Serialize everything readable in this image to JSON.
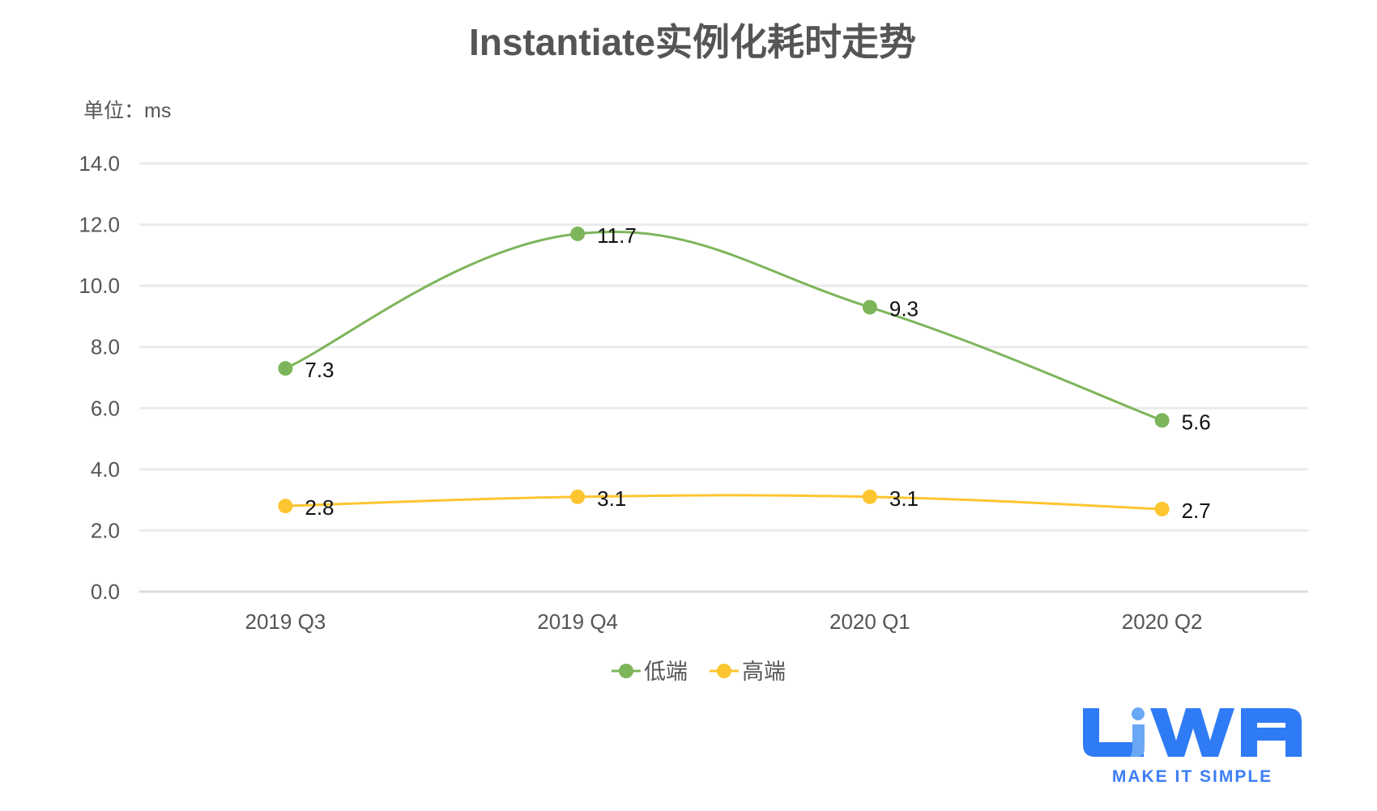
{
  "chart_data": {
    "type": "line",
    "title": "Instantiate实例化耗时走势",
    "unit_label": "单位：ms",
    "categories": [
      "2019 Q3",
      "2019 Q4",
      "2020 Q1",
      "2020 Q2"
    ],
    "series": [
      {
        "name": "低端",
        "values": [
          7.3,
          11.7,
          9.3,
          5.6
        ],
        "color": "#7db55b"
      },
      {
        "name": "高端",
        "values": [
          2.8,
          3.1,
          3.1,
          2.7
        ],
        "color": "#fdc530"
      }
    ],
    "ylim": [
      0,
      14
    ],
    "yticks": [
      "0.0",
      "2.0",
      "4.0",
      "6.0",
      "8.0",
      "10.0",
      "12.0",
      "14.0"
    ],
    "grid": true,
    "smooth": true,
    "legend": "bottom-center",
    "xlabel": "",
    "ylabel": ""
  },
  "logo": {
    "text": "LiWA",
    "tagline": "MAKE IT SIMPLE",
    "color": "#2f7bf5"
  }
}
